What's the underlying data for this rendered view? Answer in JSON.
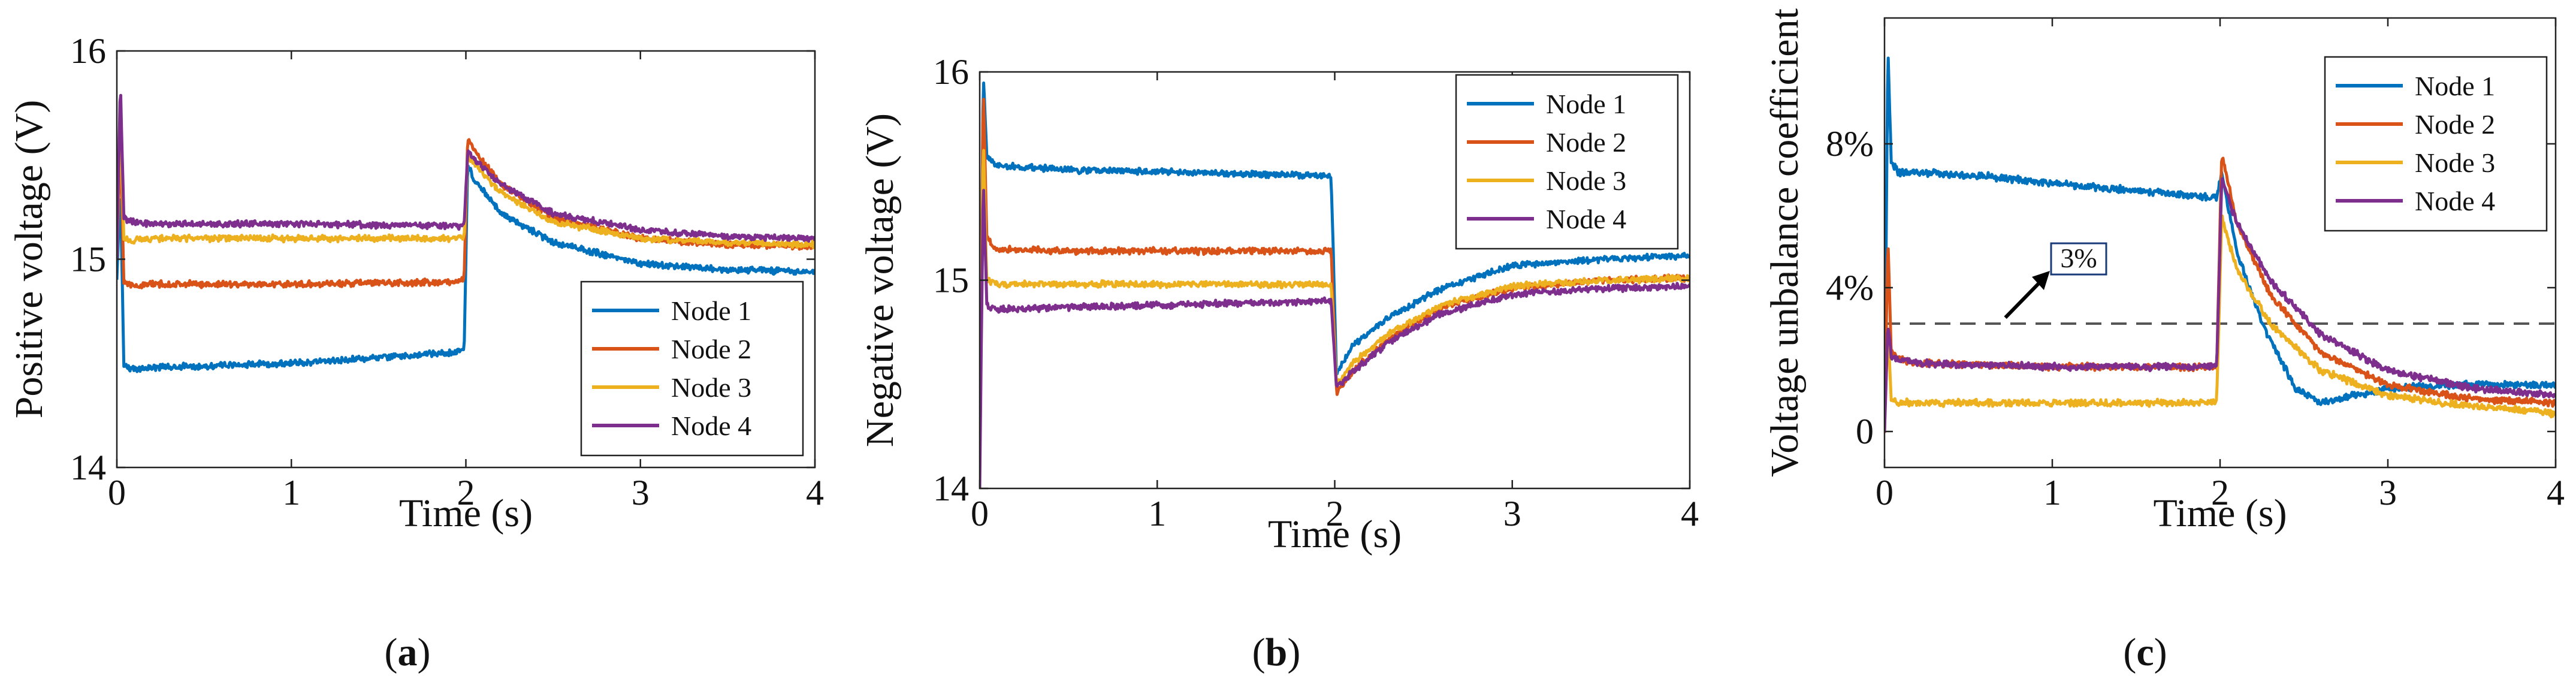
{
  "figure": {
    "captions": [
      "(a)",
      "(b)",
      "(c)"
    ],
    "caption_letters": [
      "a",
      "b",
      "c"
    ]
  },
  "colors": {
    "node1": "#0072BD",
    "node2": "#D95319",
    "node3": "#EDB120",
    "node4": "#7E2F8E",
    "axes": "#222222",
    "threshold": "#555555"
  },
  "chart_data": [
    {
      "id": "a",
      "type": "line",
      "xlabel": "Time (s)",
      "ylabel": "Positive voltage (V)",
      "xlim": [
        0,
        4
      ],
      "ylim": [
        14,
        16
      ],
      "xticks": [
        0,
        1,
        2,
        3,
        4
      ],
      "yticks": [
        14,
        15,
        16
      ],
      "ytick_labels": [
        "14",
        "15",
        "16"
      ],
      "legend_position": "lower-right",
      "series": [
        {
          "name": "Node 1",
          "color": "#0072BD",
          "x": [
            0,
            0.02,
            0.04,
            0.08,
            0.2,
            1.0,
            1.9,
            1.99,
            2.01,
            2.05,
            2.2,
            2.5,
            3.0,
            3.5,
            4.0
          ],
          "y": [
            14.9,
            15.35,
            14.5,
            14.47,
            14.48,
            14.5,
            14.55,
            14.56,
            15.45,
            15.38,
            15.22,
            15.08,
            14.98,
            14.95,
            14.94
          ]
        },
        {
          "name": "Node 2",
          "color": "#D95319",
          "x": [
            0,
            0.02,
            0.04,
            0.08,
            0.2,
            1.0,
            1.9,
            1.99,
            2.01,
            2.05,
            2.2,
            2.5,
            3.0,
            3.5,
            4.0
          ],
          "y": [
            15.0,
            15.6,
            14.9,
            14.87,
            14.88,
            14.88,
            14.89,
            14.9,
            15.58,
            15.52,
            15.36,
            15.2,
            15.1,
            15.07,
            15.06
          ]
        },
        {
          "name": "Node 3",
          "color": "#EDB120",
          "x": [
            0,
            0.02,
            0.04,
            0.08,
            0.2,
            1.0,
            1.9,
            1.99,
            2.01,
            2.05,
            2.2,
            2.5,
            3.0,
            3.5,
            4.0
          ],
          "y": [
            15.0,
            15.7,
            15.1,
            15.09,
            15.1,
            15.1,
            15.1,
            15.1,
            15.5,
            15.46,
            15.32,
            15.18,
            15.1,
            15.08,
            15.07
          ]
        },
        {
          "name": "Node 4",
          "color": "#7E2F8E",
          "x": [
            0,
            0.02,
            0.04,
            0.08,
            0.2,
            1.0,
            1.9,
            1.99,
            2.01,
            2.05,
            2.2,
            2.5,
            3.0,
            3.5,
            4.0
          ],
          "y": [
            15.0,
            15.85,
            15.2,
            15.18,
            15.17,
            15.17,
            15.16,
            15.16,
            15.52,
            15.48,
            15.36,
            15.22,
            15.14,
            15.11,
            15.1
          ]
        }
      ]
    },
    {
      "id": "b",
      "type": "line",
      "xlabel": "Time (s)",
      "ylabel": "Negative voltage (V)",
      "xlim": [
        0,
        4
      ],
      "ylim": [
        14,
        16
      ],
      "xticks": [
        0,
        1,
        2,
        3,
        4
      ],
      "yticks": [
        14,
        15,
        16
      ],
      "ytick_labels": [
        "14",
        "15",
        "16"
      ],
      "legend_position": "top-right",
      "series": [
        {
          "name": "Node 1",
          "color": "#0072BD",
          "x": [
            0,
            0.02,
            0.04,
            0.1,
            0.5,
            1.0,
            1.5,
            1.98,
            2.01,
            2.1,
            2.3,
            2.6,
            3.0,
            3.5,
            4.0
          ],
          "y": [
            14.2,
            16.0,
            15.6,
            15.55,
            15.53,
            15.52,
            15.51,
            15.5,
            14.55,
            14.68,
            14.82,
            14.96,
            15.07,
            15.1,
            15.12
          ]
        },
        {
          "name": "Node 2",
          "color": "#D95319",
          "x": [
            0,
            0.02,
            0.04,
            0.1,
            0.5,
            1.0,
            1.5,
            1.98,
            2.01,
            2.1,
            2.3,
            2.6,
            3.0,
            3.5,
            4.0
          ],
          "y": [
            14.1,
            15.95,
            15.2,
            15.15,
            15.14,
            15.14,
            15.14,
            15.14,
            14.46,
            14.56,
            14.72,
            14.87,
            14.96,
            15.0,
            15.01
          ]
        },
        {
          "name": "Node 3",
          "color": "#EDB120",
          "x": [
            0,
            0.02,
            0.04,
            0.1,
            0.5,
            1.0,
            1.5,
            1.98,
            2.01,
            2.1,
            2.3,
            2.6,
            3.0,
            3.5,
            4.0
          ],
          "y": [
            14.1,
            15.7,
            15.0,
            14.98,
            14.98,
            14.98,
            14.98,
            14.98,
            14.5,
            14.6,
            14.74,
            14.88,
            14.97,
            15.0,
            15.01
          ]
        },
        {
          "name": "Node 4",
          "color": "#7E2F8E",
          "x": [
            0,
            0.02,
            0.04,
            0.1,
            0.5,
            1.0,
            1.5,
            1.98,
            2.01,
            2.1,
            2.3,
            2.6,
            3.0,
            3.5,
            4.0
          ],
          "y": [
            14.0,
            15.5,
            14.88,
            14.86,
            14.87,
            14.88,
            14.89,
            14.9,
            14.48,
            14.56,
            14.7,
            14.84,
            14.93,
            14.96,
            14.97
          ]
        }
      ]
    },
    {
      "id": "c",
      "type": "line",
      "xlabel": "Time (s)",
      "ylabel": "Voltage unbalance coefficient",
      "xlim": [
        0,
        4
      ],
      "ylim": [
        -0.01,
        0.115
      ],
      "xticks": [
        0,
        1,
        2,
        3,
        4
      ],
      "yticks": [
        0,
        0.04,
        0.08
      ],
      "ytick_labels": [
        "0",
        "4%",
        "8%"
      ],
      "legend_position": "top-right",
      "threshold": {
        "value": 0.03,
        "label": "3%"
      },
      "series": [
        {
          "name": "Node 1",
          "color": "#0072BD",
          "x": [
            0,
            0.02,
            0.04,
            0.08,
            0.2,
            0.6,
            1.0,
            1.5,
            1.98,
            2.01,
            2.1,
            2.25,
            2.45,
            2.6,
            2.8,
            3.0,
            3.5,
            4.0
          ],
          "y": [
            0.0,
            0.107,
            0.075,
            0.072,
            0.072,
            0.071,
            0.069,
            0.067,
            0.065,
            0.072,
            0.05,
            0.03,
            0.012,
            0.008,
            0.01,
            0.012,
            0.013,
            0.013
          ]
        },
        {
          "name": "Node 2",
          "color": "#D95319",
          "x": [
            0,
            0.02,
            0.04,
            0.08,
            0.2,
            1.0,
            1.98,
            2.01,
            2.1,
            2.3,
            2.6,
            3.0,
            3.5,
            4.0
          ],
          "y": [
            0.0,
            0.054,
            0.022,
            0.02,
            0.019,
            0.018,
            0.018,
            0.077,
            0.058,
            0.038,
            0.022,
            0.013,
            0.009,
            0.008
          ]
        },
        {
          "name": "Node 3",
          "color": "#EDB120",
          "x": [
            0,
            0.02,
            0.04,
            0.08,
            0.2,
            1.0,
            1.98,
            2.01,
            2.1,
            2.3,
            2.6,
            3.0,
            3.5,
            4.0
          ],
          "y": [
            0.0,
            0.03,
            0.009,
            0.008,
            0.008,
            0.008,
            0.008,
            0.06,
            0.045,
            0.03,
            0.017,
            0.01,
            0.007,
            0.005
          ]
        },
        {
          "name": "Node 4",
          "color": "#7E2F8E",
          "x": [
            0,
            0.02,
            0.04,
            0.08,
            0.2,
            1.0,
            1.98,
            2.01,
            2.1,
            2.3,
            2.6,
            3.0,
            3.5,
            4.0
          ],
          "y": [
            0.0,
            0.03,
            0.021,
            0.02,
            0.019,
            0.018,
            0.018,
            0.07,
            0.058,
            0.042,
            0.027,
            0.017,
            0.012,
            0.01
          ]
        }
      ]
    }
  ]
}
